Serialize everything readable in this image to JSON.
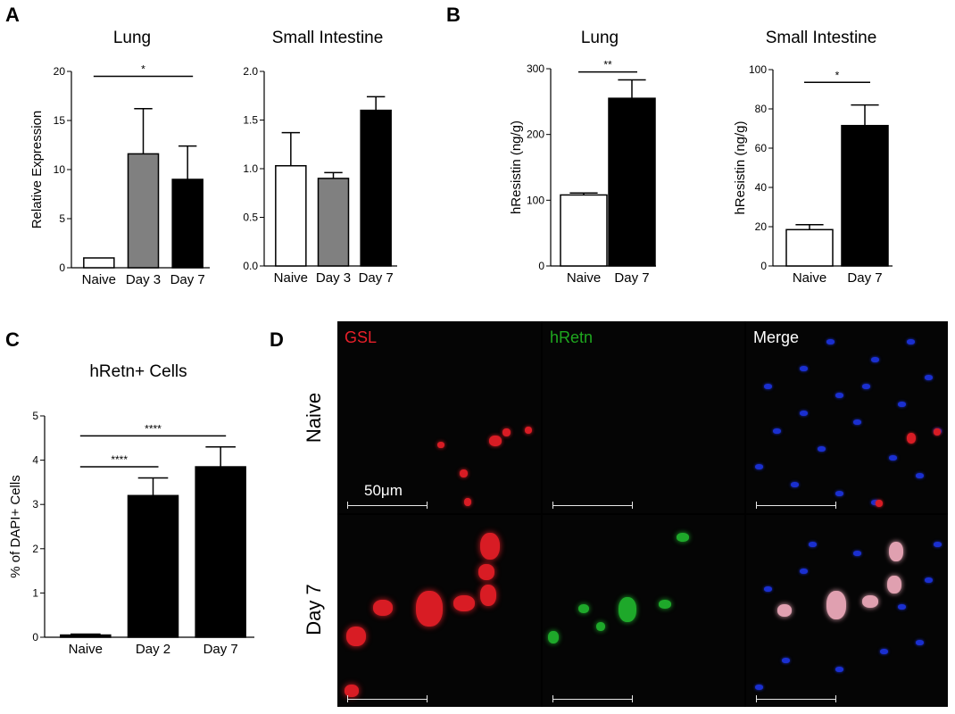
{
  "panels": {
    "A": {
      "letter": "A"
    },
    "B": {
      "letter": "B"
    },
    "C": {
      "letter": "C"
    },
    "D": {
      "letter": "D"
    }
  },
  "chart_data": [
    {
      "id": "A-lung",
      "type": "bar",
      "title": "Lung",
      "ylabel": "Relative Expression",
      "xlabel": "",
      "categories": [
        "Naive",
        "Day 3",
        "Day 7"
      ],
      "values": [
        1.0,
        11.6,
        9.0
      ],
      "errors": [
        0,
        4.6,
        3.4
      ],
      "fills": [
        "#ffffff",
        "#808080",
        "#000000"
      ],
      "ylim": [
        0,
        20
      ],
      "yticks": [
        "0",
        "5",
        "10",
        "15",
        "20"
      ],
      "significance": [
        {
          "from": 0,
          "to": 2,
          "label": "*",
          "y": 19.5
        }
      ]
    },
    {
      "id": "A-si",
      "type": "bar",
      "title": "Small Intestine",
      "ylabel": "",
      "xlabel": "",
      "categories": [
        "Naive",
        "Day 3",
        "Day 7"
      ],
      "values": [
        1.03,
        0.9,
        1.6
      ],
      "errors": [
        0.34,
        0.06,
        0.14
      ],
      "fills": [
        "#ffffff",
        "#808080",
        "#000000"
      ],
      "ylim": [
        0,
        2.0
      ],
      "yticks": [
        "0.0",
        "0.5",
        "1.0",
        "1.5",
        "2.0"
      ],
      "significance": []
    },
    {
      "id": "B-lung",
      "type": "bar",
      "title": "Lung",
      "ylabel": "hResistin (ng/g)",
      "xlabel": "",
      "categories": [
        "Naive",
        "Day 7"
      ],
      "values": [
        108,
        255
      ],
      "errors": [
        3,
        28
      ],
      "fills": [
        "#ffffff",
        "#000000"
      ],
      "ylim": [
        0,
        300
      ],
      "yticks": [
        "0",
        "100",
        "200",
        "300"
      ],
      "significance": [
        {
          "from": 0,
          "to": 1,
          "label": "**",
          "y": 295
        }
      ]
    },
    {
      "id": "B-si",
      "type": "bar",
      "title": "Small Intestine",
      "ylabel": "hResistin (ng/g)",
      "xlabel": "",
      "categories": [
        "Naive",
        "Day 7"
      ],
      "values": [
        18.5,
        71.5
      ],
      "errors": [
        2.5,
        10.5
      ],
      "fills": [
        "#ffffff",
        "#000000"
      ],
      "ylim": [
        0,
        100
      ],
      "yticks": [
        "0",
        "20",
        "40",
        "60",
        "80",
        "100"
      ],
      "significance": [
        {
          "from": 0,
          "to": 1,
          "label": "*",
          "y": 93.5
        }
      ]
    },
    {
      "id": "C",
      "type": "bar",
      "title": "hRetn+ Cells",
      "ylabel": "% of DAPI+ Cells",
      "xlabel": "",
      "categories": [
        "Naive",
        "Day 2",
        "Day 7"
      ],
      "values": [
        0.05,
        3.2,
        3.85
      ],
      "errors": [
        0.02,
        0.4,
        0.45
      ],
      "fills": [
        "#000000",
        "#000000",
        "#000000"
      ],
      "ylim": [
        0,
        5
      ],
      "yticks": [
        "0",
        "1",
        "2",
        "3",
        "4",
        "5"
      ],
      "significance": [
        {
          "from": 0,
          "to": 1,
          "label": "****",
          "y": 3.85
        },
        {
          "from": 0,
          "to": 2,
          "label": "****",
          "y": 4.55
        }
      ]
    }
  ],
  "micrographs": {
    "columns": [
      {
        "label": "GSL",
        "color": "#e8202a"
      },
      {
        "label": "hRetn",
        "color": "#1fa81f"
      },
      {
        "label": "Merge",
        "color": "#ffffff"
      }
    ],
    "rows": [
      {
        "label": "Naive"
      },
      {
        "label": "Day 7"
      }
    ],
    "scale_label": "50μm"
  }
}
